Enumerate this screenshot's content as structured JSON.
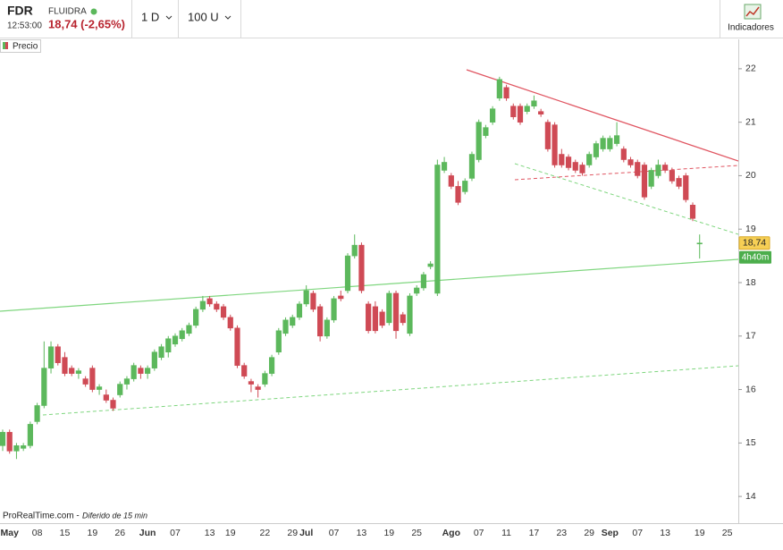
{
  "header": {
    "symbol": "FDR",
    "time": "12:53:00",
    "name": "FLUIDRA",
    "price": "18,74 (-2,65%)",
    "period": "1 D",
    "units": "100 U",
    "indicators": "Indicadores"
  },
  "legend": "Precio",
  "footer": {
    "source": "ProRealTime.com -",
    "delay": "Diferido de 15 min"
  },
  "chart_data": {
    "type": "candlestick",
    "up_color": "#5cb85c",
    "down_color": "#cf4a55",
    "last_price_label": "18,74",
    "countdown_label": "4h40m",
    "ylim": [
      13.5,
      22.55
    ],
    "yticks": [
      14,
      15,
      16,
      17,
      18,
      19,
      20,
      21,
      22
    ],
    "categories": [
      null,
      "May",
      null,
      null,
      null,
      "08",
      null,
      null,
      null,
      "15",
      null,
      null,
      null,
      "19",
      null,
      null,
      null,
      "26",
      null,
      null,
      null,
      "Jun",
      null,
      null,
      null,
      "07",
      null,
      null,
      null,
      null,
      "13",
      null,
      null,
      "19",
      null,
      null,
      null,
      null,
      "22",
      null,
      null,
      null,
      "29",
      null,
      "Jul",
      null,
      null,
      null,
      "07",
      null,
      null,
      null,
      "13",
      null,
      null,
      null,
      "19",
      null,
      null,
      null,
      "25",
      null,
      null,
      null,
      null,
      "Ago",
      null,
      null,
      null,
      "07",
      null,
      null,
      null,
      "11",
      null,
      null,
      null,
      "17",
      null,
      null,
      null,
      "23",
      null,
      null,
      null,
      "29",
      null,
      null,
      "Sep",
      null,
      null,
      null,
      "07",
      null,
      null,
      null,
      "13",
      null,
      null,
      null,
      null,
      "19",
      null,
      null,
      null,
      "25"
    ],
    "open": [
      14.95,
      15.2,
      14.85,
      14.9,
      14.95,
      15.4,
      15.7,
      16.4,
      16.8,
      16.6,
      16.4,
      16.3,
      16.2,
      16.4,
      16.0,
      15.9,
      15.8,
      15.9,
      16.1,
      16.2,
      16.4,
      16.3,
      16.4,
      16.6,
      16.7,
      16.85,
      16.95,
      17.05,
      17.2,
      17.5,
      17.7,
      17.6,
      17.55,
      17.35,
      17.15,
      16.45,
      16.15,
      16.05,
      16.1,
      16.3,
      16.7,
      17.05,
      17.2,
      17.35,
      17.6,
      17.8,
      17.55,
      17.0,
      17.3,
      17.75,
      17.85,
      18.5,
      18.7,
      17.6,
      17.55,
      17.45,
      17.25,
      17.8,
      17.4,
      17.05,
      17.8,
      17.9,
      18.3,
      17.8,
      20.1,
      20.0,
      19.8,
      19.7,
      19.95,
      20.3,
      20.75,
      21.0,
      21.45,
      21.65,
      21.3,
      21.3,
      21.2,
      21.3,
      21.2,
      21.0,
      20.95,
      20.4,
      20.35,
      20.25,
      20.2,
      20.2,
      20.35,
      20.5,
      20.5,
      20.6,
      20.5,
      20.3,
      20.25,
      20.2,
      19.8,
      20.0,
      20.2,
      20.1,
      19.95,
      20.0,
      19.45,
      18.73,
      null,
      null,
      null,
      null
    ],
    "high": [
      15.25,
      15.25,
      15.0,
      15.0,
      15.4,
      15.75,
      16.9,
      16.9,
      16.85,
      16.7,
      16.45,
      16.4,
      16.25,
      16.45,
      16.1,
      16.0,
      15.85,
      16.15,
      16.25,
      16.5,
      16.45,
      16.45,
      16.75,
      16.85,
      17.0,
      17.05,
      17.15,
      17.25,
      17.55,
      17.75,
      17.75,
      17.65,
      17.6,
      17.4,
      17.2,
      16.5,
      16.2,
      16.1,
      16.35,
      16.65,
      17.15,
      17.35,
      17.4,
      17.65,
      17.95,
      17.85,
      17.6,
      17.35,
      17.75,
      17.85,
      18.55,
      18.9,
      18.75,
      17.65,
      17.65,
      17.5,
      17.85,
      17.85,
      17.45,
      17.8,
      17.95,
      18.2,
      18.4,
      20.3,
      20.35,
      20.05,
      19.9,
      19.95,
      20.45,
      21.05,
      20.95,
      21.3,
      21.85,
      21.7,
      21.35,
      21.35,
      21.35,
      21.5,
      21.25,
      21.05,
      21.0,
      20.5,
      20.4,
      20.3,
      20.25,
      20.45,
      20.65,
      20.75,
      20.75,
      21.0,
      20.55,
      20.35,
      20.3,
      20.25,
      20.15,
      20.3,
      20.25,
      20.15,
      20.0,
      20.05,
      19.5,
      18.9,
      null,
      null,
      null,
      null
    ],
    "low": [
      14.85,
      14.8,
      14.7,
      14.85,
      14.9,
      15.35,
      15.65,
      16.3,
      16.45,
      16.25,
      16.25,
      16.2,
      16.05,
      15.95,
      15.9,
      15.75,
      15.6,
      15.85,
      16.0,
      16.15,
      16.2,
      16.2,
      16.35,
      16.55,
      16.6,
      16.8,
      16.9,
      17.0,
      17.15,
      17.45,
      17.55,
      17.45,
      17.3,
      17.1,
      16.4,
      16.2,
      15.95,
      15.85,
      16.05,
      16.25,
      16.65,
      17.0,
      17.15,
      17.3,
      17.55,
      17.45,
      16.9,
      16.95,
      17.25,
      17.65,
      17.8,
      18.45,
      17.8,
      17.05,
      17.05,
      17.15,
      17.2,
      16.95,
      17.2,
      17.0,
      17.75,
      17.85,
      18.25,
      17.75,
      20.05,
      19.75,
      19.45,
      19.65,
      19.9,
      20.25,
      20.7,
      20.95,
      21.4,
      21.4,
      21.05,
      20.95,
      21.15,
      21.25,
      21.1,
      20.45,
      20.15,
      20.15,
      20.1,
      20.05,
      20.0,
      20.15,
      20.3,
      20.45,
      20.45,
      20.55,
      20.25,
      20.15,
      19.95,
      19.55,
      19.75,
      19.95,
      20.05,
      19.85,
      19.75,
      19.5,
      19.15,
      18.45,
      null,
      null,
      null,
      null
    ],
    "close": [
      15.2,
      14.85,
      14.95,
      14.95,
      15.35,
      15.7,
      16.4,
      16.8,
      16.5,
      16.3,
      16.3,
      16.35,
      16.1,
      16.0,
      16.05,
      15.8,
      15.65,
      16.1,
      16.2,
      16.45,
      16.3,
      16.4,
      16.7,
      16.8,
      16.95,
      17.0,
      17.1,
      17.2,
      17.5,
      17.65,
      17.6,
      17.5,
      17.35,
      17.15,
      16.45,
      16.25,
      16.1,
      16.0,
      16.3,
      16.6,
      17.1,
      17.3,
      17.35,
      17.6,
      17.85,
      17.5,
      17.0,
      17.3,
      17.7,
      17.7,
      18.5,
      18.7,
      17.85,
      17.1,
      17.1,
      17.2,
      17.8,
      17.1,
      17.25,
      17.75,
      17.9,
      18.15,
      18.35,
      20.2,
      20.25,
      19.8,
      19.5,
      19.9,
      20.4,
      21.0,
      20.9,
      21.25,
      21.8,
      21.45,
      21.1,
      21.0,
      21.3,
      21.4,
      21.15,
      20.5,
      20.2,
      20.2,
      20.15,
      20.1,
      20.05,
      20.4,
      20.6,
      20.7,
      20.7,
      20.75,
      20.3,
      20.2,
      20.0,
      19.6,
      20.1,
      20.2,
      20.1,
      19.9,
      19.8,
      19.55,
      19.2,
      18.74,
      null,
      null,
      null,
      null
    ]
  }
}
